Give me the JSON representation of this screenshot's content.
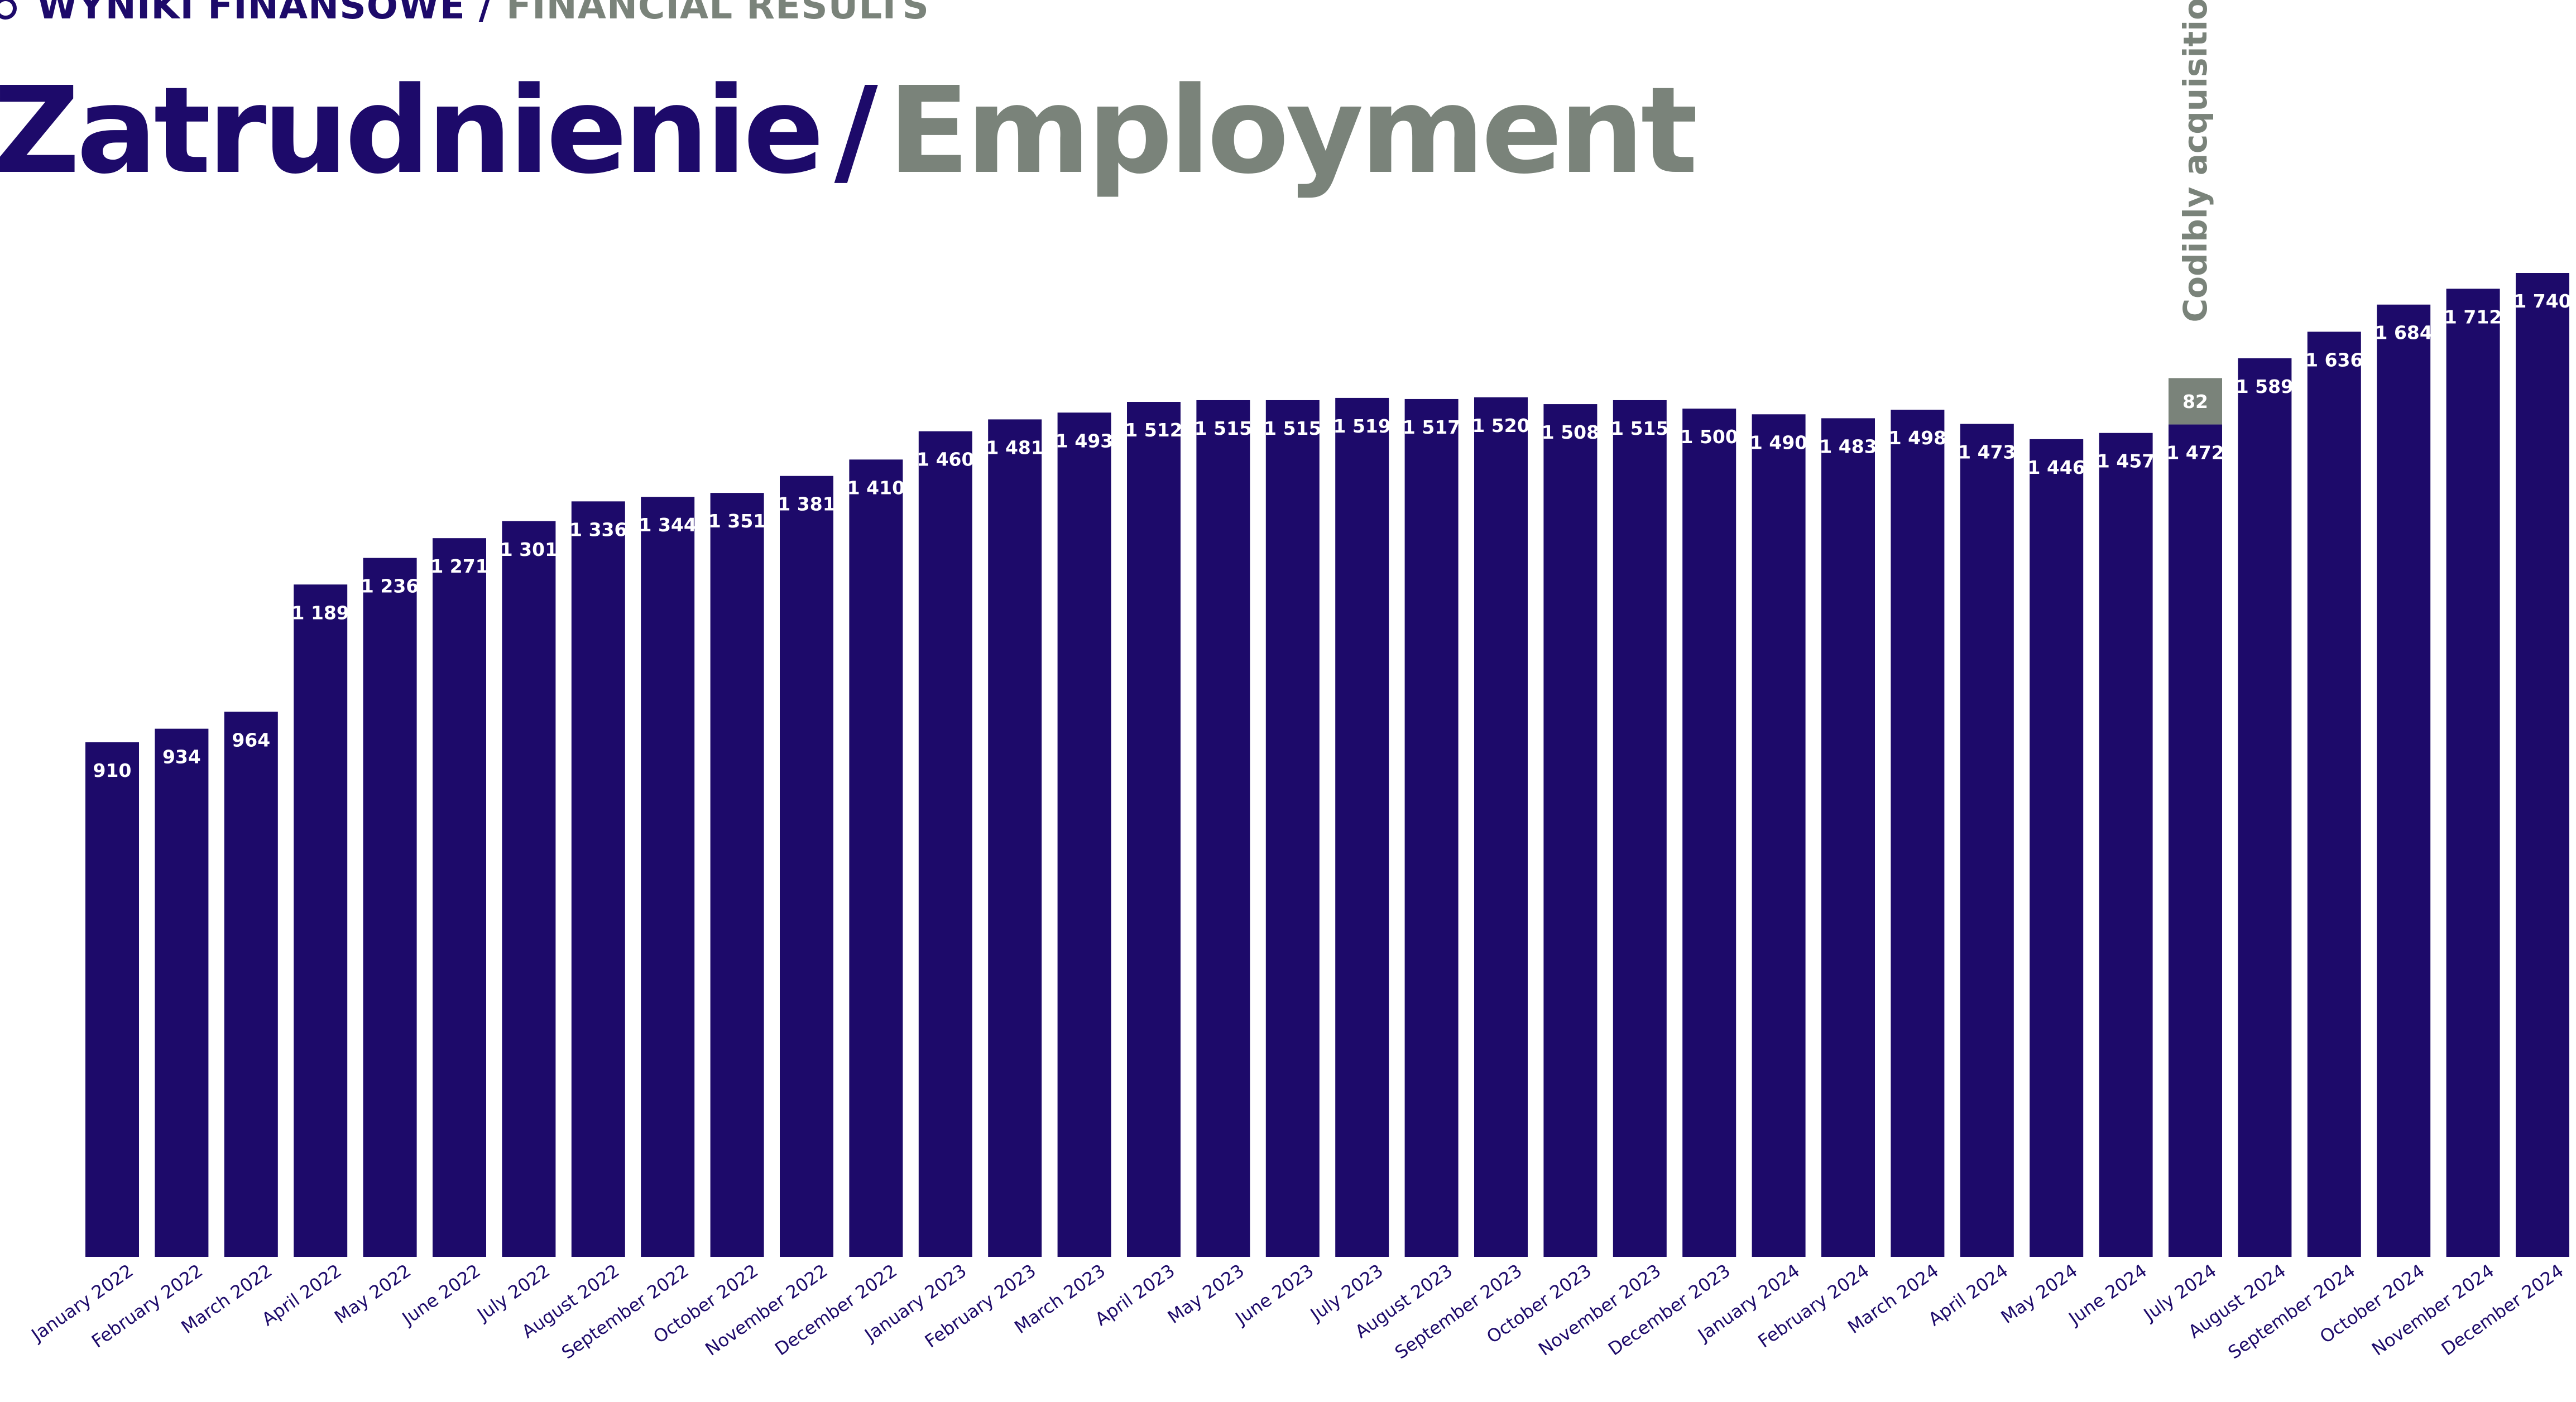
{
  "header": {
    "section_pl": "WYNIKI FINANSOWE /",
    "section_en": "FINANCIAL RESULTS",
    "title_pl": "Zatrudnienie",
    "title_sep": "/",
    "title_en": "Employment"
  },
  "colors": {
    "primary": "#1d0a6a",
    "secondary": "#7a837a",
    "label_text": "#ffffff"
  },
  "chart_data": {
    "type": "bar",
    "stacked": true,
    "title": "Zatrudnienie / Employment",
    "xlabel": "",
    "ylabel": "",
    "grid": false,
    "legend": "none",
    "categories": [
      "January 2022",
      "February 2022",
      "March 2022",
      "April 2022",
      "May 2022",
      "June 2022",
      "July 2022",
      "August 2022",
      "September 2022",
      "October 2022",
      "November 2022",
      "December 2022",
      "January 2023",
      "February 2023",
      "March 2023",
      "April 2023",
      "May 2023",
      "June 2023",
      "July 2023",
      "August 2023",
      "September 2023",
      "October 2023",
      "November 2023",
      "December 2023",
      "January 2024",
      "February 2024",
      "March 2024",
      "April 2024",
      "May 2024",
      "June 2024",
      "July 2024",
      "August 2024",
      "September 2024",
      "October 2024",
      "November 2024",
      "December 2024"
    ],
    "series": [
      {
        "values": [
          910,
          934,
          964,
          1189,
          1236,
          1271,
          1301,
          1336,
          1344,
          1351,
          1381,
          1410,
          1460,
          1481,
          1493,
          1512,
          1515,
          1515,
          1519,
          1517,
          1520,
          1508,
          1515,
          1500,
          1490,
          1483,
          1498,
          1473,
          1446,
          1457,
          1472,
          1589,
          1636,
          1684,
          1712,
          1740
        ],
        "labels": [
          "910",
          "934",
          "964",
          "1 189",
          "1 236",
          "1 271",
          "1 301",
          "1 336",
          "1 344",
          "1 351",
          "1 381",
          "1 410",
          "1 460",
          "1 481",
          "1 493",
          "1 512",
          "1 515",
          "1 515",
          "1 519",
          "1 517",
          "1 520",
          "1 508",
          "1 515",
          "1 500",
          "1 490",
          "1 483",
          "1 498",
          "1 473",
          "1 446",
          "1 457",
          "1 472",
          "1 589",
          "1 636",
          "1 684",
          "1 712",
          "1 740"
        ]
      },
      {
        "values": [
          0,
          0,
          0,
          0,
          0,
          0,
          0,
          0,
          0,
          0,
          0,
          0,
          0,
          0,
          0,
          0,
          0,
          0,
          0,
          0,
          0,
          0,
          0,
          0,
          0,
          0,
          0,
          0,
          0,
          0,
          82,
          0,
          0,
          0,
          0,
          0
        ],
        "labels": [
          "",
          "",
          "",
          "",
          "",
          "",
          "",
          "",
          "",
          "",
          "",
          "",
          "",
          "",
          "",
          "",
          "",
          "",
          "",
          "",
          "",
          "",
          "",
          "",
          "",
          "",
          "",
          "",
          "",
          "",
          "82",
          "",
          "",
          "",
          "",
          ""
        ]
      }
    ],
    "annotations": [
      {
        "category": "July 2024",
        "text": "Codibly acquisition"
      }
    ],
    "ylim": [
      0,
      1740
    ]
  }
}
